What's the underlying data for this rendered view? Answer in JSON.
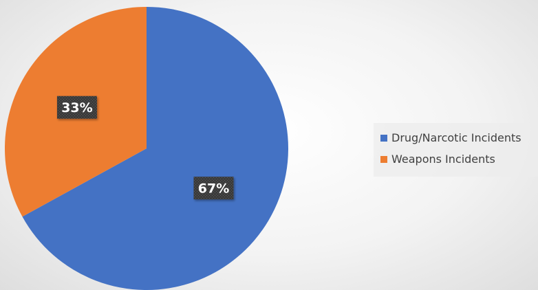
{
  "colors": {
    "drug": "#4472C4",
    "weapons": "#ED7D31",
    "label_bg": "#3b3b3b"
  },
  "chart_data": {
    "type": "pie",
    "title": "",
    "categories": [
      "Drug/Narcotic Incidents",
      "Weapons Incidents"
    ],
    "values": [
      67,
      33
    ],
    "value_unit": "percent",
    "data_labels": [
      "67%",
      "33%"
    ],
    "colors": [
      "#4472C4",
      "#ED7D31"
    ],
    "start_angle_deg": 0,
    "direction": "clockwise",
    "legend_position": "right"
  },
  "legend": {
    "items": [
      {
        "label": "Drug/Narcotic Incidents",
        "color": "#4472C4"
      },
      {
        "label": "Weapons Incidents",
        "color": "#ED7D31"
      }
    ]
  }
}
